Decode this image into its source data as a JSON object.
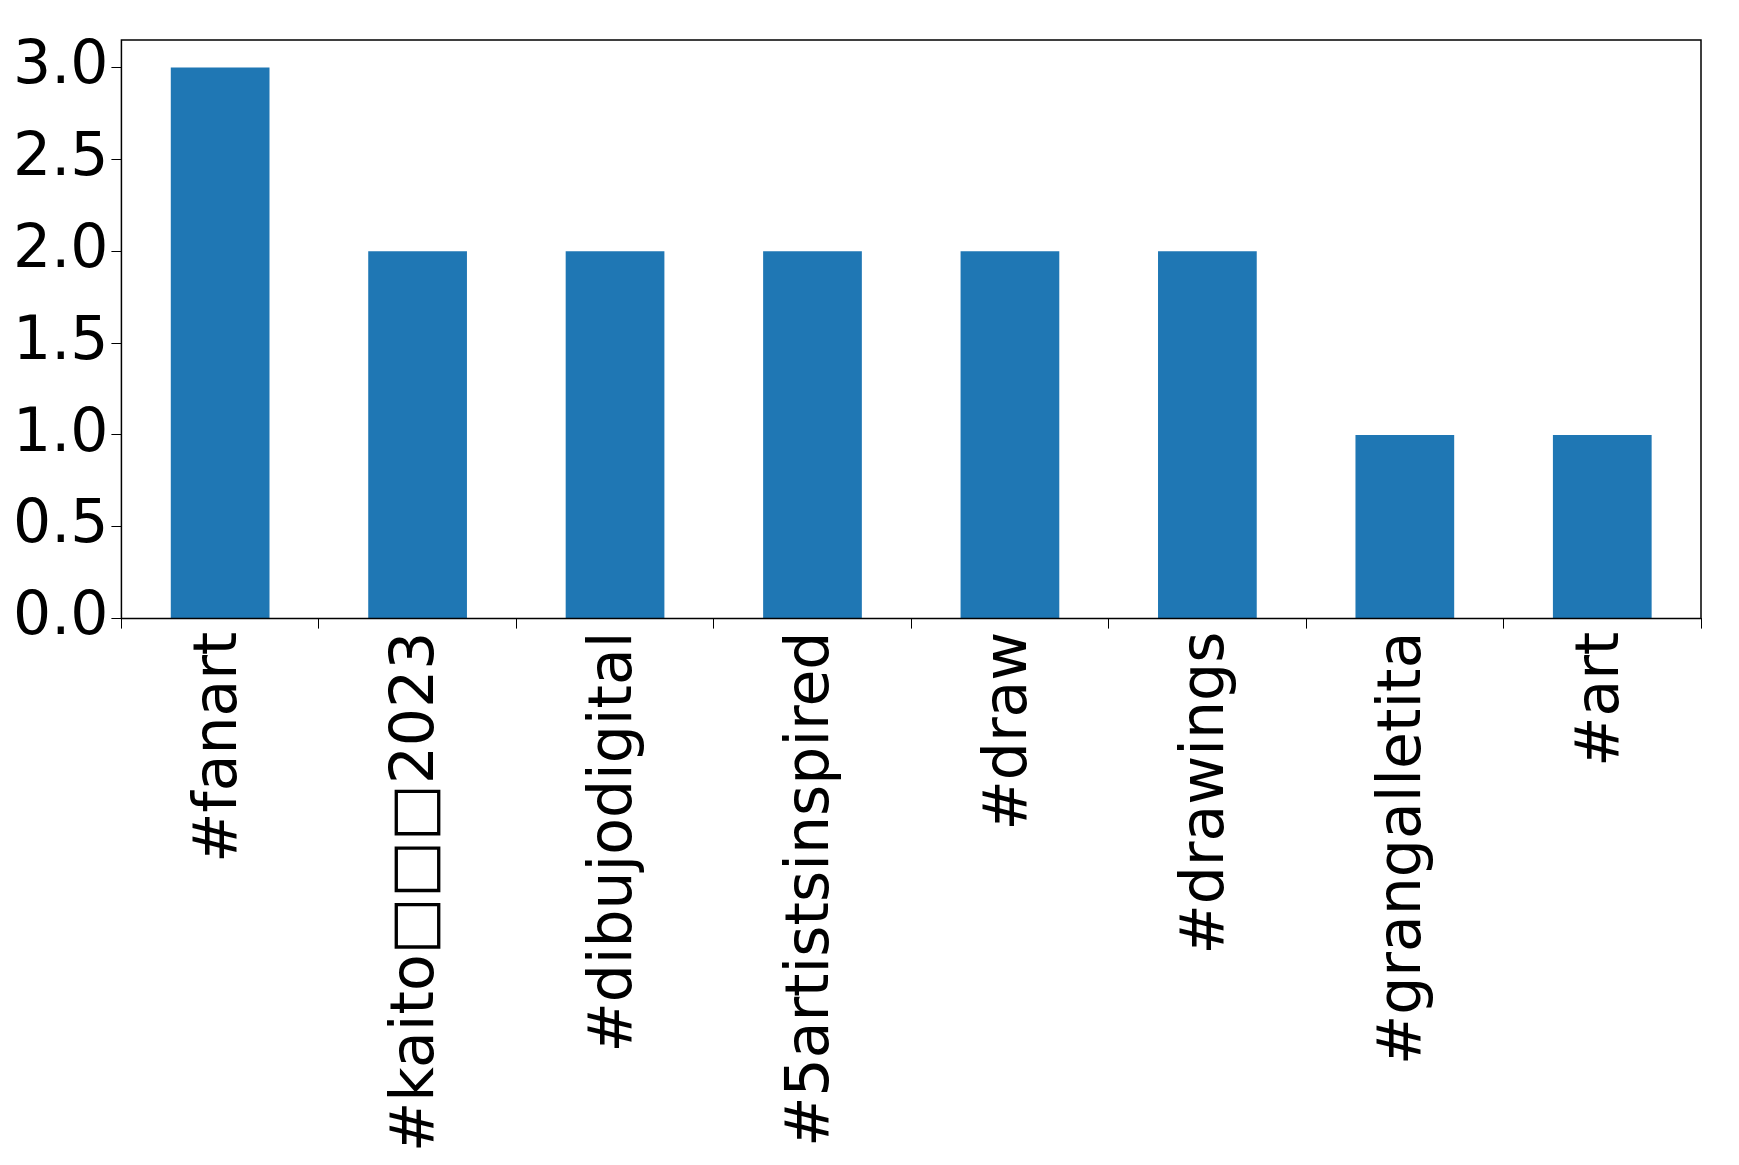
{
  "chart_data": {
    "type": "bar",
    "categories": [
      "#fanart",
      "#kaito□□□2023",
      "#dibujodigital",
      "#5artistsinspired",
      "#draw",
      "#drawings",
      "#grangalletita",
      "#art"
    ],
    "values": [
      3,
      2,
      2,
      2,
      2,
      2,
      1,
      1
    ],
    "color": "#1f77b4",
    "ylim": [
      0,
      3.15
    ],
    "yticks": [
      {
        "value": 0,
        "label": "0.0"
      },
      0.5,
      {
        "value": 1,
        "label": "1.0"
      },
      1.5,
      {
        "value": 2,
        "label": "2.0"
      },
      2.5,
      {
        "value": 3,
        "label": "3.0"
      }
    ],
    "grid": false,
    "legend": false
  }
}
